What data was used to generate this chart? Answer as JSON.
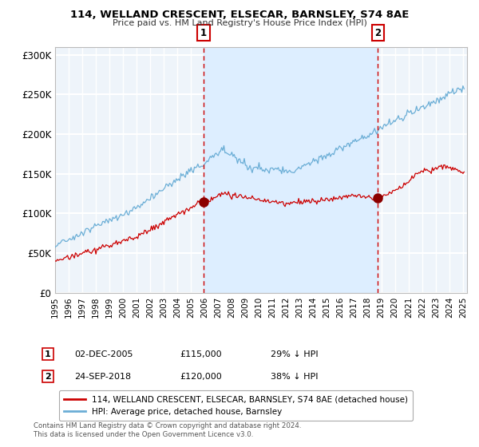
{
  "title": "114, WELLAND CRESCENT, ELSECAR, BARNSLEY, S74 8AE",
  "subtitle": "Price paid vs. HM Land Registry's House Price Index (HPI)",
  "ylim": [
    0,
    310000
  ],
  "yticks": [
    0,
    50000,
    100000,
    150000,
    200000,
    250000,
    300000
  ],
  "ytick_labels": [
    "£0",
    "£50K",
    "£100K",
    "£150K",
    "£200K",
    "£250K",
    "£300K"
  ],
  "hpi_color": "#6baed6",
  "price_color": "#cc0000",
  "marker_color": "#8b0000",
  "vline_color": "#cc0000",
  "shade_color": "#ddeeff",
  "background_plot": "#eef4fa",
  "background_fig": "#ffffff",
  "grid_color": "#ffffff",
  "transaction1": {
    "date_num": 2005.92,
    "price": 115000,
    "label": "1",
    "date_str": "02-DEC-2005",
    "pct": "29% ↓ HPI"
  },
  "transaction2": {
    "date_num": 2018.73,
    "price": 120000,
    "label": "2",
    "date_str": "24-SEP-2018",
    "pct": "38% ↓ HPI"
  },
  "legend_price_label": "114, WELLAND CRESCENT, ELSECAR, BARNSLEY, S74 8AE (detached house)",
  "legend_hpi_label": "HPI: Average price, detached house, Barnsley",
  "footnote": "Contains HM Land Registry data © Crown copyright and database right 2024.\nThis data is licensed under the Open Government Licence v3.0."
}
